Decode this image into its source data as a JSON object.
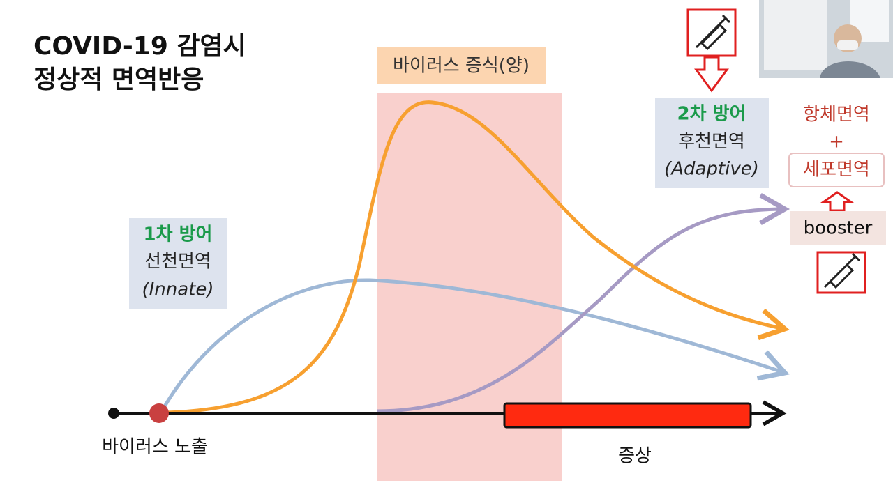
{
  "title": {
    "line1": "COVID-19 감염시",
    "line2": "정상적 면역반응"
  },
  "replication_label": "바이러스 증식(양)",
  "innate": {
    "heading": "1차 방어",
    "name": "선천면역",
    "english": "(Innate)"
  },
  "adaptive": {
    "heading": "2차 방어",
    "name": "후천면역",
    "english": "(Adaptive)"
  },
  "result": {
    "antibody": "항체면역",
    "plus": "+",
    "cellular": "세포면역"
  },
  "booster": "booster",
  "exposure_label": "바이러스 노출",
  "symptom_label": "증상"
}
